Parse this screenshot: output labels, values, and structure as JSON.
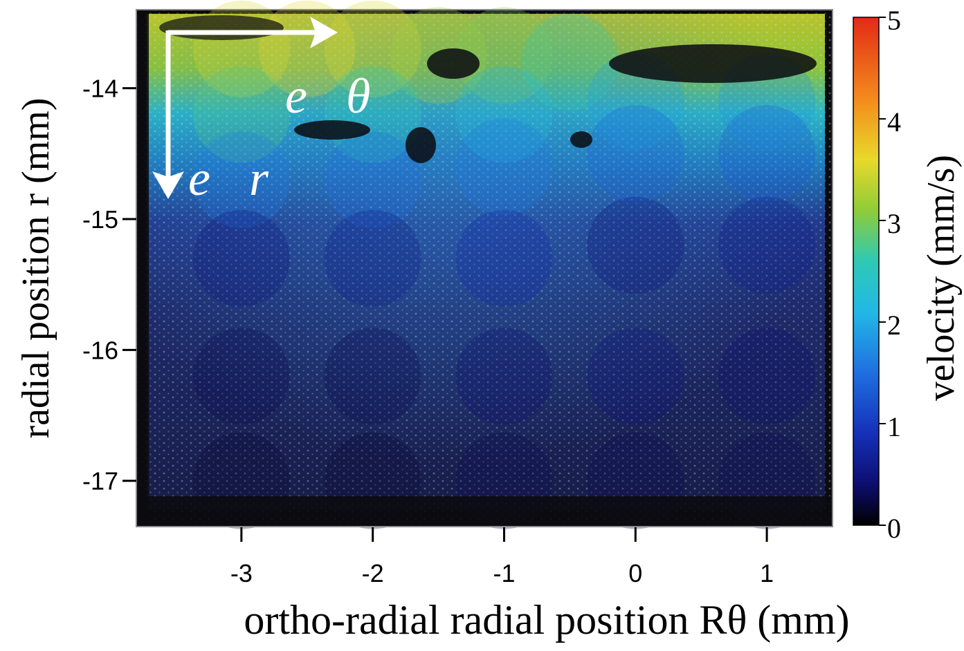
{
  "chart_data": {
    "type": "heatmap",
    "title": "",
    "xlabel": "ortho-radial radial position Rθ (mm)",
    "ylabel": "radial position r (mm)",
    "xlim": [
      -3.8,
      1.5
    ],
    "ylim": [
      -17.35,
      -13.4
    ],
    "x_ticks": [
      -3,
      -2,
      -1,
      0,
      1
    ],
    "y_ticks": [
      -14,
      -15,
      -16,
      -17
    ],
    "x_tick_labels": [
      "-3",
      "-2",
      "-1",
      "0",
      "1"
    ],
    "y_tick_labels": [
      "-14",
      "-15",
      "-16",
      "-17"
    ],
    "colorbar": {
      "label": "velocity  (mm/s)",
      "range": [
        0,
        5
      ],
      "ticks": [
        0,
        1,
        2,
        3,
        4,
        5
      ],
      "tick_labels": [
        "0",
        "1",
        "2",
        "3",
        "4",
        "5"
      ],
      "colormap": "jet"
    },
    "vectors": {
      "e_theta": "e⃗θ",
      "e_r": "e⃗r"
    },
    "velocity_field": [
      {
        "x": -3.0,
        "y": -13.7,
        "v": 3.5
      },
      {
        "x": -2.5,
        "y": -13.7,
        "v": 3.6
      },
      {
        "x": -2.0,
        "y": -13.7,
        "v": 3.5
      },
      {
        "x": -1.5,
        "y": -13.75,
        "v": 3.2
      },
      {
        "x": -1.0,
        "y": -13.75,
        "v": 3.0
      },
      {
        "x": -0.5,
        "y": -13.8,
        "v": 2.6
      },
      {
        "x": -3.0,
        "y": -14.2,
        "v": 2.8
      },
      {
        "x": -2.0,
        "y": -14.2,
        "v": 2.6
      },
      {
        "x": -1.0,
        "y": -14.2,
        "v": 2.2
      },
      {
        "x": 0.0,
        "y": -14.1,
        "v": 1.9
      },
      {
        "x": 1.0,
        "y": -14.1,
        "v": 1.8
      },
      {
        "x": -3.0,
        "y": -14.7,
        "v": 1.6
      },
      {
        "x": -2.0,
        "y": -14.7,
        "v": 1.5
      },
      {
        "x": -1.0,
        "y": -14.6,
        "v": 1.6
      },
      {
        "x": 0.0,
        "y": -14.5,
        "v": 1.4
      },
      {
        "x": 1.0,
        "y": -14.5,
        "v": 1.3
      },
      {
        "x": -3.0,
        "y": -15.3,
        "v": 0.5
      },
      {
        "x": -2.0,
        "y": -15.3,
        "v": 0.6
      },
      {
        "x": -1.0,
        "y": -15.3,
        "v": 0.8
      },
      {
        "x": 0.0,
        "y": -15.2,
        "v": 0.5
      },
      {
        "x": 1.0,
        "y": -15.2,
        "v": 0.6
      },
      {
        "x": -3.0,
        "y": -16.2,
        "v": 0.3
      },
      {
        "x": -2.0,
        "y": -16.2,
        "v": 0.3
      },
      {
        "x": -1.0,
        "y": -16.2,
        "v": 0.4
      },
      {
        "x": 0.0,
        "y": -16.2,
        "v": 0.5
      },
      {
        "x": 1.0,
        "y": -16.2,
        "v": 0.4
      },
      {
        "x": -3.0,
        "y": -17.0,
        "v": 0.2
      },
      {
        "x": -2.0,
        "y": -17.0,
        "v": 0.2
      },
      {
        "x": -1.0,
        "y": -17.0,
        "v": 0.3
      },
      {
        "x": 0.0,
        "y": -17.0,
        "v": 0.3
      },
      {
        "x": 1.0,
        "y": -17.0,
        "v": 0.3
      }
    ]
  }
}
